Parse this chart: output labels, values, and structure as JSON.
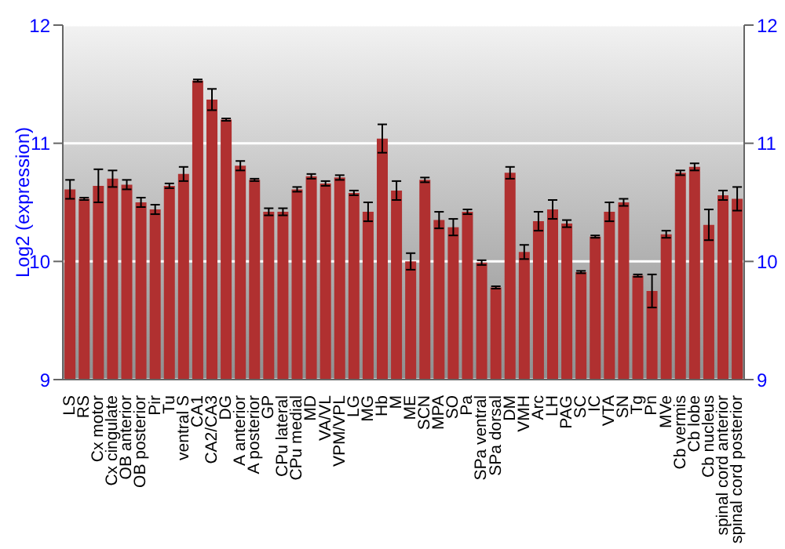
{
  "chart_data": {
    "type": "bar",
    "ylabel": "Log2 (expression)",
    "categories": [
      "LS",
      "RS",
      "Cx motor",
      "Cx cingulate",
      "OB anterior",
      "OB posterior",
      "Pir",
      "Tu",
      "ventral S",
      "CA1",
      "CA2/CA3",
      "DG",
      "A anterior",
      "A posterior",
      "GP",
      "CPu lateral",
      "CPu medial",
      "MD",
      "VA/VL",
      "VPM/VPL",
      "LG",
      "MG",
      "Hb",
      "M",
      "ME",
      "SCN",
      "MPA",
      "SO",
      "Pa",
      "SPa ventral",
      "SPa dorsal",
      "DM",
      "VMH",
      "Arc",
      "LH",
      "PAG",
      "SC",
      "IC",
      "VTA",
      "SN",
      "Tg",
      "Pn",
      "MVe",
      "Cb vermis",
      "Cb lobe",
      "Cb nucleus",
      "spinal cord anterior",
      "spinal cord posterior"
    ],
    "values": [
      10.61,
      10.53,
      10.64,
      10.7,
      10.65,
      10.5,
      10.44,
      10.64,
      10.74,
      11.53,
      11.37,
      11.2,
      10.81,
      10.69,
      10.42,
      10.42,
      10.61,
      10.72,
      10.66,
      10.71,
      10.58,
      10.42,
      11.04,
      10.6,
      10.0,
      10.69,
      10.35,
      10.29,
      10.42,
      9.99,
      9.78,
      10.75,
      10.08,
      10.34,
      10.44,
      10.32,
      9.91,
      10.21,
      10.42,
      10.5,
      9.88,
      9.75,
      10.23,
      10.75,
      10.8,
      10.31,
      10.56,
      10.53
    ],
    "errors": [
      0.08,
      0.01,
      0.14,
      0.07,
      0.04,
      0.04,
      0.04,
      0.02,
      0.06,
      0.01,
      0.09,
      0.01,
      0.04,
      0.01,
      0.03,
      0.03,
      0.02,
      0.02,
      0.02,
      0.02,
      0.02,
      0.08,
      0.12,
      0.08,
      0.07,
      0.02,
      0.07,
      0.07,
      0.02,
      0.02,
      0.01,
      0.05,
      0.06,
      0.08,
      0.08,
      0.03,
      0.01,
      0.01,
      0.08,
      0.03,
      0.01,
      0.14,
      0.03,
      0.02,
      0.03,
      0.13,
      0.04,
      0.1
    ],
    "color": "#b03030",
    "ylim": [
      9,
      12
    ],
    "yticks": [
      9,
      10,
      11,
      12
    ],
    "y2lim": [
      9,
      12
    ],
    "y2ticks": [
      9,
      10,
      11,
      12
    ],
    "grid": "y"
  }
}
